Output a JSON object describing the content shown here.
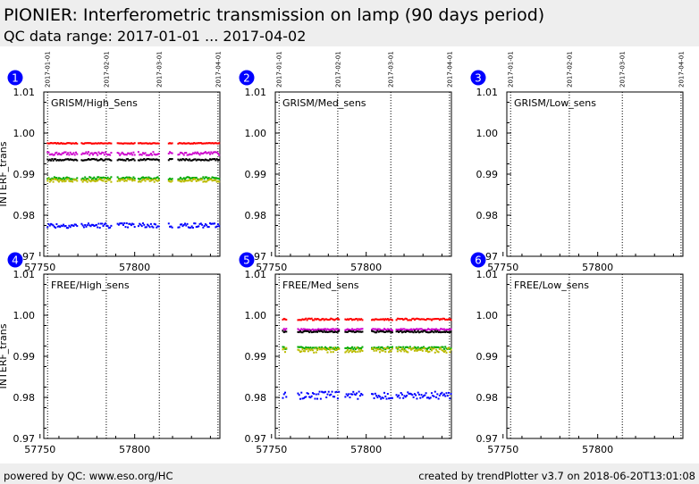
{
  "header": {
    "title": "PIONIER: Interferometric transmission on lamp (90 days period)",
    "subtitle": "QC data range: 2017-01-01 ... 2017-04-02"
  },
  "footer": {
    "left": "powered by QC: www.eso.org/HC",
    "right": "created by trendPlotter v3.7 on 2018-06-20T13:01:08"
  },
  "colors": {
    "red": "#ff0000",
    "purple": "#cc00cc",
    "black": "#000000",
    "green": "#00aa00",
    "yellow": "#bbbb00",
    "blue": "#0000ff",
    "badge": "#0000ff"
  },
  "chart_data": [
    {
      "type": "scatter",
      "panel": "1",
      "label": "GRISM/High_Sens",
      "ylabel": "INTERF_trans",
      "xlim": [
        57752,
        57845
      ],
      "ylim": [
        0.97,
        1.01
      ],
      "xticks": [
        57750,
        57800
      ],
      "yticks": [
        "0.97",
        "0.98",
        "0.99",
        "1.00",
        "1.01"
      ],
      "date_markers": [
        {
          "x": 57754,
          "label": "2017-01-01"
        },
        {
          "x": 57785,
          "label": "2017-02-01"
        },
        {
          "x": 57813,
          "label": "2017-03-01"
        },
        {
          "x": 57844,
          "label": "2017-04-01"
        }
      ],
      "series": [
        {
          "color": "red",
          "y": 0.9975,
          "jitter": 0.0001,
          "segments": [
            [
              57754,
              57770
            ],
            [
              57772,
              57788
            ],
            [
              57791,
              57800
            ],
            [
              57802,
              57813
            ],
            [
              57818,
              57820
            ],
            [
              57823,
              57845
            ]
          ]
        },
        {
          "color": "purple",
          "y": 0.995,
          "jitter": 0.0004,
          "segments": [
            [
              57754,
              57770
            ],
            [
              57772,
              57788
            ],
            [
              57791,
              57800
            ],
            [
              57802,
              57813
            ],
            [
              57818,
              57820
            ],
            [
              57823,
              57845
            ]
          ]
        },
        {
          "color": "black",
          "y": 0.9935,
          "jitter": 0.0002,
          "segments": [
            [
              57754,
              57770
            ],
            [
              57772,
              57788
            ],
            [
              57791,
              57800
            ],
            [
              57802,
              57813
            ],
            [
              57818,
              57820
            ],
            [
              57823,
              57845
            ]
          ]
        },
        {
          "color": "green",
          "y": 0.989,
          "jitter": 0.0003,
          "segments": [
            [
              57754,
              57770
            ],
            [
              57772,
              57788
            ],
            [
              57791,
              57800
            ],
            [
              57802,
              57813
            ],
            [
              57818,
              57820
            ],
            [
              57823,
              57845
            ]
          ]
        },
        {
          "color": "yellow",
          "y": 0.9885,
          "jitter": 0.0004,
          "segments": [
            [
              57754,
              57770
            ],
            [
              57772,
              57788
            ],
            [
              57791,
              57800
            ],
            [
              57802,
              57813
            ],
            [
              57818,
              57820
            ],
            [
              57823,
              57845
            ]
          ]
        },
        {
          "color": "blue",
          "y": 0.9775,
          "jitter": 0.0006,
          "segments": [
            [
              57754,
              57770
            ],
            [
              57772,
              57788
            ],
            [
              57791,
              57800
            ],
            [
              57802,
              57813
            ],
            [
              57818,
              57820
            ],
            [
              57823,
              57845
            ]
          ]
        }
      ]
    },
    {
      "type": "scatter",
      "panel": "2",
      "label": "GRISM/Med_sens",
      "ylabel": "",
      "xlim": [
        57752,
        57845
      ],
      "ylim": [
        0.97,
        1.01
      ],
      "xticks": [
        57750,
        57800
      ],
      "yticks": [
        "0.97",
        "0.98",
        "0.99",
        "1.00",
        "1.01"
      ],
      "date_markers": [
        {
          "x": 57754,
          "label": "2017-01-01"
        },
        {
          "x": 57785,
          "label": "2017-02-01"
        },
        {
          "x": 57813,
          "label": "2017-03-01"
        },
        {
          "x": 57844,
          "label": "2017-04-01"
        }
      ],
      "series": []
    },
    {
      "type": "scatter",
      "panel": "3",
      "label": "GRISM/Low_sens",
      "ylabel": "",
      "xlim": [
        57752,
        57845
      ],
      "ylim": [
        0.97,
        1.01
      ],
      "xticks": [
        57750,
        57800
      ],
      "yticks": [
        "0.97",
        "0.98",
        "0.99",
        "1.00",
        "1.01"
      ],
      "date_markers": [
        {
          "x": 57754,
          "label": "2017-01-01"
        },
        {
          "x": 57785,
          "label": "2017-02-01"
        },
        {
          "x": 57813,
          "label": "2017-03-01"
        },
        {
          "x": 57844,
          "label": "2017-04-01"
        }
      ],
      "series": []
    },
    {
      "type": "scatter",
      "panel": "4",
      "label": "FREE/High_sens",
      "ylabel": "INTERF_trans",
      "xlim": [
        57752,
        57845
      ],
      "ylim": [
        0.97,
        1.01
      ],
      "xticks": [
        57750,
        57800
      ],
      "yticks": [
        "0.97",
        "0.98",
        "0.99",
        "1.00",
        "1.01"
      ],
      "date_markers": [
        {
          "x": 57754,
          "label": ""
        },
        {
          "x": 57785,
          "label": ""
        },
        {
          "x": 57813,
          "label": ""
        },
        {
          "x": 57844,
          "label": ""
        }
      ],
      "series": []
    },
    {
      "type": "scatter",
      "panel": "5",
      "label": "FREE/Med_sens",
      "ylabel": "",
      "xlim": [
        57752,
        57845
      ],
      "ylim": [
        0.97,
        1.01
      ],
      "xticks": [
        57750,
        57800
      ],
      "yticks": [
        "0.97",
        "0.98",
        "0.99",
        "1.00",
        "1.01"
      ],
      "date_markers": [
        {
          "x": 57754,
          "label": ""
        },
        {
          "x": 57785,
          "label": ""
        },
        {
          "x": 57813,
          "label": ""
        },
        {
          "x": 57844,
          "label": ""
        }
      ],
      "series": [
        {
          "color": "red",
          "y": 0.999,
          "jitter": 0.0002,
          "segments": [
            [
              57756,
              57758
            ],
            [
              57764,
              57786
            ],
            [
              57789,
              57798
            ],
            [
              57803,
              57814
            ],
            [
              57816,
              57845
            ]
          ]
        },
        {
          "color": "purple",
          "y": 0.9965,
          "jitter": 0.0002,
          "segments": [
            [
              57756,
              57758
            ],
            [
              57764,
              57786
            ],
            [
              57789,
              57798
            ],
            [
              57803,
              57814
            ],
            [
              57816,
              57845
            ]
          ]
        },
        {
          "color": "black",
          "y": 0.996,
          "jitter": 0.0002,
          "segments": [
            [
              57756,
              57758
            ],
            [
              57764,
              57786
            ],
            [
              57789,
              57798
            ],
            [
              57803,
              57814
            ],
            [
              57816,
              57845
            ]
          ]
        },
        {
          "color": "green",
          "y": 0.992,
          "jitter": 0.0003,
          "segments": [
            [
              57756,
              57758
            ],
            [
              57764,
              57786
            ],
            [
              57789,
              57798
            ],
            [
              57803,
              57814
            ],
            [
              57816,
              57845
            ]
          ]
        },
        {
          "color": "yellow",
          "y": 0.9915,
          "jitter": 0.0006,
          "segments": [
            [
              57756,
              57758
            ],
            [
              57764,
              57786
            ],
            [
              57789,
              57798
            ],
            [
              57803,
              57814
            ],
            [
              57816,
              57845
            ]
          ]
        },
        {
          "color": "blue",
          "y": 0.9805,
          "jitter": 0.0009,
          "segments": [
            [
              57756,
              57758
            ],
            [
              57764,
              57786
            ],
            [
              57789,
              57798
            ],
            [
              57803,
              57814
            ],
            [
              57816,
              57845
            ]
          ]
        }
      ]
    },
    {
      "type": "scatter",
      "panel": "6",
      "label": "FREE/Low_sens",
      "ylabel": "",
      "xlim": [
        57752,
        57845
      ],
      "ylim": [
        0.97,
        1.01
      ],
      "xticks": [
        57750,
        57800
      ],
      "yticks": [
        "0.97",
        "0.98",
        "0.99",
        "1.00",
        "1.01"
      ],
      "date_markers": [
        {
          "x": 57754,
          "label": ""
        },
        {
          "x": 57785,
          "label": ""
        },
        {
          "x": 57813,
          "label": ""
        },
        {
          "x": 57844,
          "label": ""
        }
      ],
      "series": []
    }
  ]
}
